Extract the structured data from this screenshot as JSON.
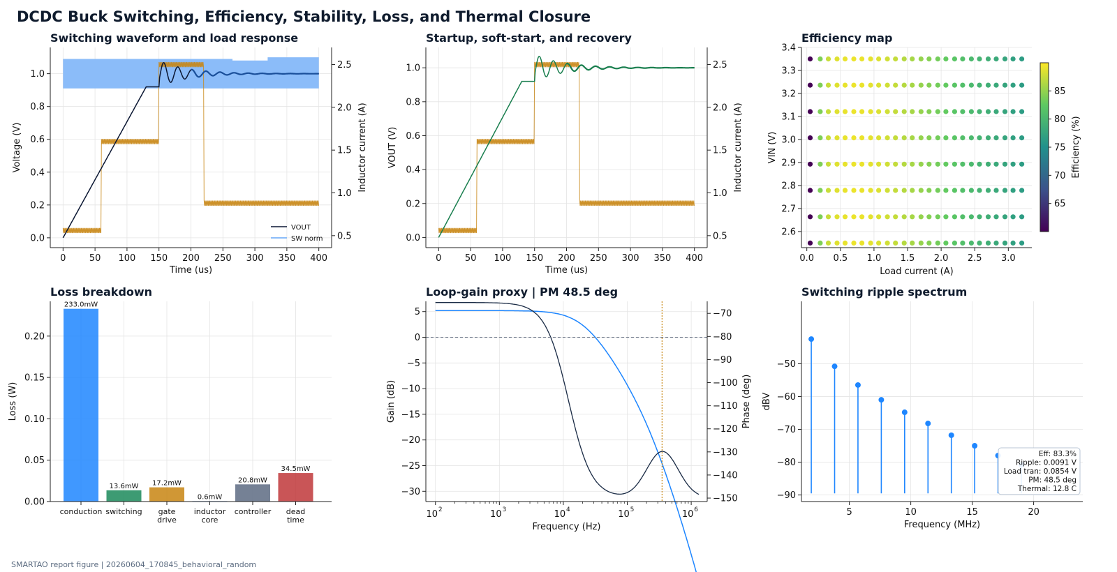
{
  "figure": {
    "title": "DCDC Buck Switching, Efficiency, Stability, Loss, and Thermal Closure",
    "footer": "SMARTAO report figure | 20260604_170845_behavioral_random"
  },
  "colors": {
    "vout": "#0b1733",
    "sw": "#1e86ff",
    "il": "#c88512",
    "vout_green": "#1a7f4f",
    "gain": "#1a2b45",
    "phase": "#1e86ff",
    "stem": "#1e86ff",
    "bars": [
      "#1e86ff",
      "#1b8a5a",
      "#c88512",
      "#4a78c2",
      "#5d6b82",
      "#c0373a"
    ]
  },
  "chart_data": [
    {
      "id": "switching",
      "type": "line",
      "title": "Switching waveform and load response",
      "xlabel": "Time (us)",
      "ylabel": "Voltage (V)",
      "ylabel_right": "Inductor current (A)",
      "xlim": [
        -20,
        420
      ],
      "ylim": [
        -0.06,
        1.16
      ],
      "ylim_right": [
        0.36,
        2.7
      ],
      "xticks": [
        "0",
        "50",
        "100",
        "150",
        "200",
        "250",
        "300",
        "350",
        "400"
      ],
      "yticks": [
        "0.0",
        "0.2",
        "0.4",
        "0.6",
        "0.8",
        "1.0"
      ],
      "yticks_right": [
        "0.5",
        "1.0",
        "1.5",
        "2.0",
        "2.5"
      ],
      "legend": [
        "VOUT",
        "SW norm"
      ],
      "legend_position": "lower right",
      "vout": {
        "ramp_end_t": 130,
        "ramp_end_v": 0.92,
        "step_t": 150,
        "settle_v": 1.0,
        "ring_amp": 0.08
      },
      "sw_band": [
        [
          0,
          0.91,
          1.09
        ],
        [
          265,
          0.91,
          1.08
        ],
        [
          320,
          0.91,
          1.1
        ],
        [
          400,
          0.91,
          1.1
        ]
      ],
      "inductor_current": [
        [
          0,
          0.56
        ],
        [
          60,
          1.6
        ],
        [
          150,
          2.5
        ],
        [
          220,
          0.88
        ],
        [
          400,
          0.88
        ]
      ],
      "ripple_a": 0.06
    },
    {
      "id": "startup",
      "type": "line",
      "title": "Startup, soft-start, and recovery",
      "xlabel": "Time (us)",
      "ylabel": "VOUT (V)",
      "ylabel_right": "Inductor current (A)",
      "xlim": [
        -20,
        420
      ],
      "ylim": [
        -0.06,
        1.12
      ],
      "ylim_right": [
        0.36,
        2.7
      ],
      "xticks": [
        "0",
        "50",
        "100",
        "150",
        "200",
        "250",
        "300",
        "350",
        "400"
      ],
      "yticks": [
        "0.0",
        "0.2",
        "0.4",
        "0.6",
        "0.8",
        "1.0"
      ],
      "yticks_right": [
        "0.5",
        "1.0",
        "1.5",
        "2.0",
        "2.5"
      ],
      "vout": {
        "ramp_end_t": 130,
        "ramp_end_v": 0.92,
        "step_t": 150,
        "settle_v": 1.0,
        "ring_amp": 0.08
      },
      "inductor_current": [
        [
          0,
          0.56
        ],
        [
          60,
          1.6
        ],
        [
          150,
          2.5
        ],
        [
          220,
          0.88
        ],
        [
          400,
          0.88
        ]
      ],
      "ripple_a": 0.06
    },
    {
      "id": "efficiency",
      "type": "scatter",
      "title": "Efficiency map",
      "xlabel": "Load current (A)",
      "ylabel": "VIN (V)",
      "colorbar_label": "Efficiency (%)",
      "xlim": [
        -0.08,
        3.35
      ],
      "ylim": [
        2.53,
        3.4
      ],
      "xticks": [
        "0.0",
        "0.5",
        "1.0",
        "1.5",
        "2.0",
        "2.5",
        "3.0"
      ],
      "yticks": [
        "2.6",
        "2.7",
        "2.8",
        "2.9",
        "3.0",
        "3.1",
        "3.2",
        "3.3",
        "3.4"
      ],
      "colorbar_ticks": [
        "65",
        "70",
        "75",
        "80",
        "85"
      ],
      "crange": [
        60,
        90
      ],
      "load_points": [
        0.05,
        0.2,
        0.32,
        0.45,
        0.57,
        0.7,
        0.82,
        0.95,
        1.07,
        1.2,
        1.32,
        1.45,
        1.57,
        1.7,
        1.82,
        1.95,
        2.07,
        2.2,
        2.32,
        2.45,
        2.57,
        2.7,
        2.82,
        2.95,
        3.07,
        3.2
      ],
      "vin_points": [
        2.55,
        2.664,
        2.779,
        2.893,
        3.007,
        3.121,
        3.236,
        3.35
      ],
      "efficiency_vs_load": [
        60,
        84,
        87.5,
        88.6,
        89,
        89.2,
        89.1,
        88.8,
        88.4,
        87.9,
        87.3,
        86.6,
        85.9,
        85.1,
        84.3,
        83.5,
        82.7,
        81.9,
        81.1,
        80.3,
        79.6,
        78.9,
        78.2,
        77.6,
        77,
        76.5
      ]
    },
    {
      "id": "loss",
      "type": "bar",
      "title": "Loss breakdown",
      "ylabel": "Loss (W)",
      "ylim": [
        0,
        0.242
      ],
      "yticks": [
        "0.00",
        "0.05",
        "0.10",
        "0.15",
        "0.20"
      ],
      "categories": [
        [
          "conduction"
        ],
        [
          "switching"
        ],
        [
          "gate",
          "drive"
        ],
        [
          "inductor",
          "core"
        ],
        [
          "controller"
        ],
        [
          "dead",
          "time"
        ]
      ],
      "values": [
        0.233,
        0.0136,
        0.0172,
        0.0006,
        0.0208,
        0.0345
      ],
      "data_labels": [
        "233.0mW",
        "13.6mW",
        "17.2mW",
        "0.6mW",
        "20.8mW",
        "34.5mW"
      ]
    },
    {
      "id": "loopgain",
      "type": "line",
      "title": "Loop-gain proxy | PM 48.5 deg",
      "xlabel": "Frequency (Hz)",
      "ylabel": "Gain (dB)",
      "ylabel_right": "Phase (deg)",
      "xlim_log10": [
        1.85,
        6.25
      ],
      "ylim": [
        -32,
        7
      ],
      "ylim_right": [
        -151.5,
        -64.8
      ],
      "xticks_log10": [
        2,
        3,
        4,
        5,
        6
      ],
      "yticks": [
        "5",
        "0",
        "−5",
        "−10",
        "−15",
        "−20",
        "−25",
        "−30"
      ],
      "yticks_right": [
        "−70",
        "−80",
        "−90",
        "−100",
        "−110",
        "−120",
        "−130",
        "−140",
        "−150"
      ],
      "crossover_hz": 350000
    },
    {
      "id": "spectrum",
      "type": "stem",
      "title": "Switching ripple spectrum",
      "xlabel": "Frequency (MHz)",
      "ylabel": "dBV",
      "xlim": [
        1.1,
        24
      ],
      "ylim": [
        -92,
        -31
      ],
      "xticks": [
        "5",
        "10",
        "15",
        "20"
      ],
      "yticks": [
        "−50",
        "−60",
        "−70",
        "−80",
        "−90"
      ],
      "freqs": [
        1.9,
        3.8,
        5.7,
        7.6,
        9.5,
        11.4,
        13.3,
        15.2,
        17.1,
        19.0
      ],
      "dbv": [
        -42.5,
        -50.8,
        -56.5,
        -61,
        -64.8,
        -68.2,
        -71.8,
        -75,
        -78,
        -80.8
      ],
      "baseline": -89.5,
      "annotation": [
        "Eff: 83.3%",
        "Ripple: 0.0091 V",
        "Load tran: 0.0854 V",
        "PM: 48.5 deg",
        "Thermal: 12.8 C"
      ]
    }
  ]
}
